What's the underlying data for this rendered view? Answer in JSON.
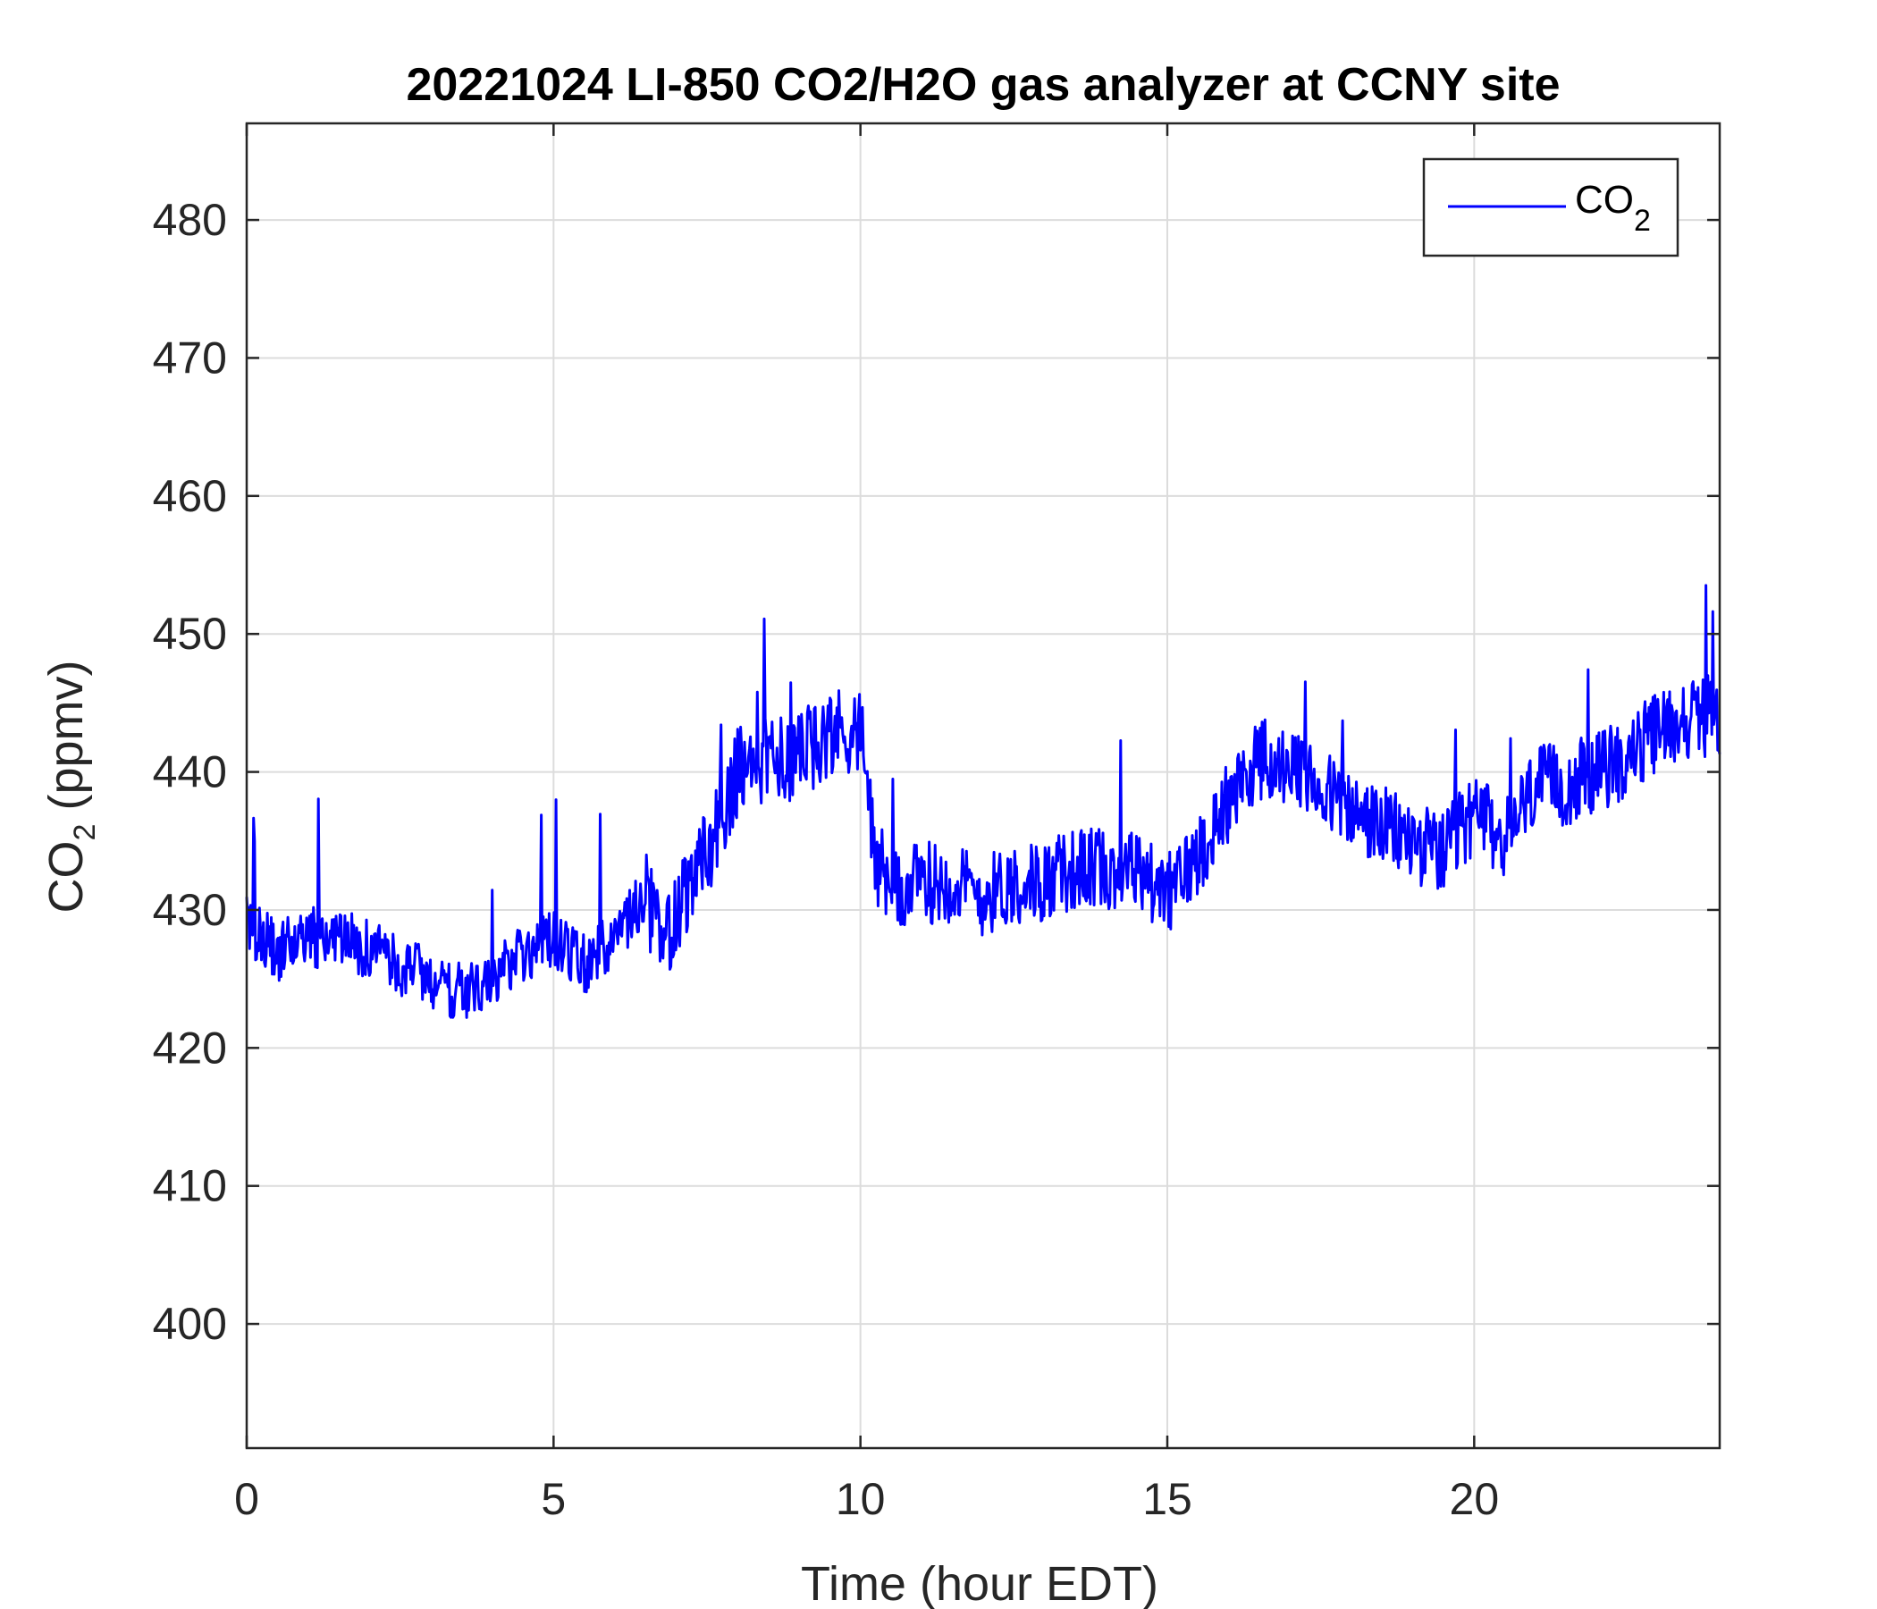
{
  "chart_data": {
    "type": "line",
    "title": "20221024 LI-850 CO2/H2O gas analyzer at CCNY site",
    "xlabel": "Time (hour EDT)",
    "ylabel": {
      "base": "CO",
      "sub": "2",
      "rest": " (ppmv)"
    },
    "xlim": [
      0,
      24
    ],
    "ylim": [
      391,
      487
    ],
    "xticks": [
      0,
      5,
      10,
      15,
      20
    ],
    "yticks": [
      400,
      410,
      420,
      430,
      440,
      450,
      460,
      470,
      480
    ],
    "grid": true,
    "legend": {
      "position": "top-right",
      "entries": [
        {
          "base": "CO",
          "sub": "2"
        }
      ]
    },
    "series": [
      {
        "name": "CO2",
        "color": "#0000ff",
        "x": [
          0,
          0.5,
          1,
          1.5,
          2,
          2.5,
          3,
          3.5,
          4,
          4.5,
          5,
          5.5,
          6,
          6.5,
          6.8,
          7,
          7.5,
          8,
          8.5,
          9,
          9.5,
          10,
          10.3,
          10.5,
          11,
          11.5,
          12,
          12.5,
          13,
          13.5,
          14,
          14.5,
          15,
          15.5,
          16,
          16.5,
          17,
          17.5,
          18,
          18.5,
          19,
          19.5,
          20,
          20.5,
          21,
          21.5,
          22,
          22.5,
          23,
          23.5,
          24
        ],
        "y": [
          429,
          427,
          428,
          428,
          427,
          426,
          425,
          424,
          425,
          427,
          428,
          426,
          428,
          431,
          427,
          430,
          434,
          440,
          441,
          441,
          443,
          443,
          432,
          431,
          432,
          432,
          431,
          432,
          432,
          433,
          433,
          433,
          431,
          434,
          438,
          441,
          440,
          439,
          437,
          436,
          435,
          434,
          437,
          435,
          439,
          439,
          440,
          441,
          443,
          444,
          444
        ]
      }
    ]
  }
}
